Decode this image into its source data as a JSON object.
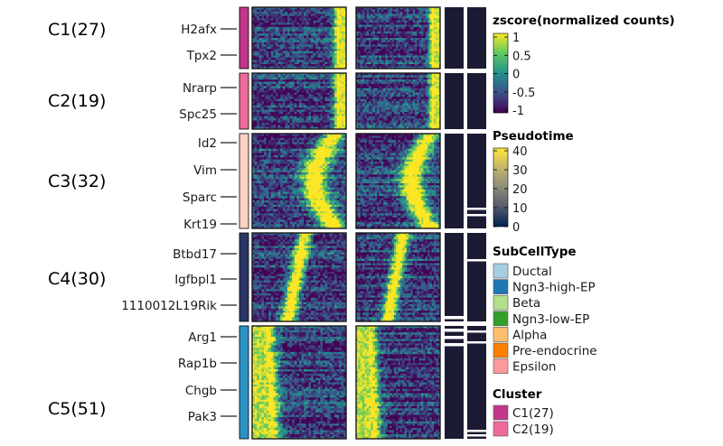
{
  "chart_data": {
    "type": "heatmap",
    "title": "",
    "panels": 2,
    "clusters": [
      {
        "name": "C1(27)",
        "n_genes": 27,
        "color": "#c2378a",
        "genes": [
          "H2afx",
          "Tpx2"
        ],
        "peak": "late"
      },
      {
        "name": "C2(19)",
        "n_genes": 19,
        "color": "#ee6a9a",
        "genes": [
          "Nrarp",
          "Spc25"
        ],
        "peak": "late"
      },
      {
        "name": "C3(32)",
        "n_genes": 32,
        "color": "#fdd1c4",
        "genes": [
          "Id2",
          "Vim",
          "Sparc",
          "Krt19"
        ],
        "peak": "mid-late"
      },
      {
        "name": "C4(30)",
        "n_genes": 30,
        "color": "#2b3664",
        "genes": [
          "Btbd17",
          "Igfbpl1",
          "1110012L19Rik"
        ],
        "peak": "early-mid"
      },
      {
        "name": "C5(51)",
        "n_genes": 51,
        "color": "#2a93c4",
        "genes": [
          "Arg1",
          "Rap1b",
          "Chgb",
          "Pak3"
        ],
        "peak": "early"
      }
    ],
    "legends": {
      "zscore": {
        "title": "zscore(normalized counts)",
        "ticks": [
          "1",
          "0.5",
          "0",
          "-0.5",
          "-1"
        ],
        "range": [
          -1,
          1
        ],
        "colors": [
          "#fde725",
          "#5ec962",
          "#21918c",
          "#3b528b",
          "#440154"
        ]
      },
      "pseudotime": {
        "title": "Pseudotime",
        "ticks": [
          "40",
          "30",
          "20",
          "10",
          "0"
        ],
        "range": [
          0,
          40
        ],
        "colors": [
          "#fde737",
          "#c5b56b",
          "#8b8b78",
          "#535a6c",
          "#00204d"
        ]
      },
      "subcelltype": {
        "title": "SubCellType",
        "items": [
          {
            "label": "Ductal",
            "color": "#a6cee3"
          },
          {
            "label": "Ngn3-high-EP",
            "color": "#1f78b4"
          },
          {
            "label": "Beta",
            "color": "#b2df8a"
          },
          {
            "label": "Ngn3-low-EP",
            "color": "#33a02c"
          },
          {
            "label": "Alpha",
            "color": "#fdbf6f"
          },
          {
            "label": "Pre-endocrine",
            "color": "#ff7f00"
          },
          {
            "label": "Epsilon",
            "color": "#fb9a99"
          }
        ]
      },
      "cluster": {
        "title": "Cluster",
        "items": [
          {
            "label": "C1(27)",
            "color": "#c2378a"
          },
          {
            "label": "C2(19)",
            "color": "#ee6a9a"
          }
        ]
      }
    }
  }
}
